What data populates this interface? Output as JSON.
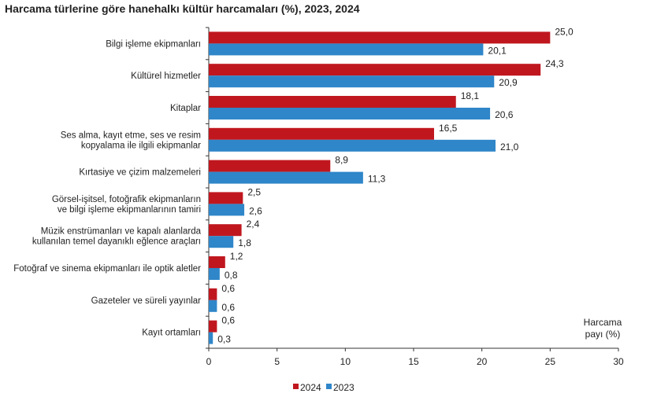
{
  "chart_data": {
    "type": "bar",
    "orientation": "horizontal",
    "title": "Harcama türlerine göre hanehalkı kültür harcamaları (%), 2023, 2024",
    "xlabel": "Harcama payı (%)",
    "xlabel_lines": [
      "Harcama",
      "payı (%)"
    ],
    "xlim": [
      0,
      30
    ],
    "xticks": [
      0,
      5,
      10,
      15,
      20,
      25,
      30
    ],
    "grid": false,
    "legend": "bottom",
    "categories": [
      [
        "Bilgi işleme ekipmanları"
      ],
      [
        "Kültürel hizmetler"
      ],
      [
        "Kitaplar"
      ],
      [
        "Ses alma, kayıt etme, ses ve resim",
        "kopyalama ile ilgili ekipmanlar"
      ],
      [
        "Kırtasiye ve çizim malzemeleri"
      ],
      [
        "Görsel-işitsel, fotoğrafik ekipmanların",
        "ve bilgi işleme ekipmanlarının tamiri"
      ],
      [
        "Müzik enstrümanları ve kapalı alanlarda",
        "kullanılan temel dayanıklı eğlence araçları"
      ],
      [
        "Fotoğraf ve sinema ekipmanları ile optik aletler"
      ],
      [
        "Gazeteler ve süreli yayınlar"
      ],
      [
        "Kayıt ortamları"
      ]
    ],
    "series": [
      {
        "name": "2024",
        "color": "#c0171f",
        "values": [
          25.0,
          24.3,
          18.1,
          16.5,
          8.9,
          2.5,
          2.4,
          1.2,
          0.6,
          0.6
        ],
        "labels": [
          "25,0",
          "24,3",
          "18,1",
          "16,5",
          "8,9",
          "2,5",
          "2,4",
          "1,2",
          "0,6",
          "0,6"
        ]
      },
      {
        "name": "2023",
        "color": "#2f86c9",
        "values": [
          20.1,
          20.9,
          20.6,
          21.0,
          11.3,
          2.6,
          1.8,
          0.8,
          0.6,
          0.3
        ],
        "labels": [
          "20,1",
          "20,9",
          "20,6",
          "21,0",
          "11,3",
          "2,6",
          "1,8",
          "0,8",
          "0,6",
          "0,3"
        ]
      }
    ]
  }
}
